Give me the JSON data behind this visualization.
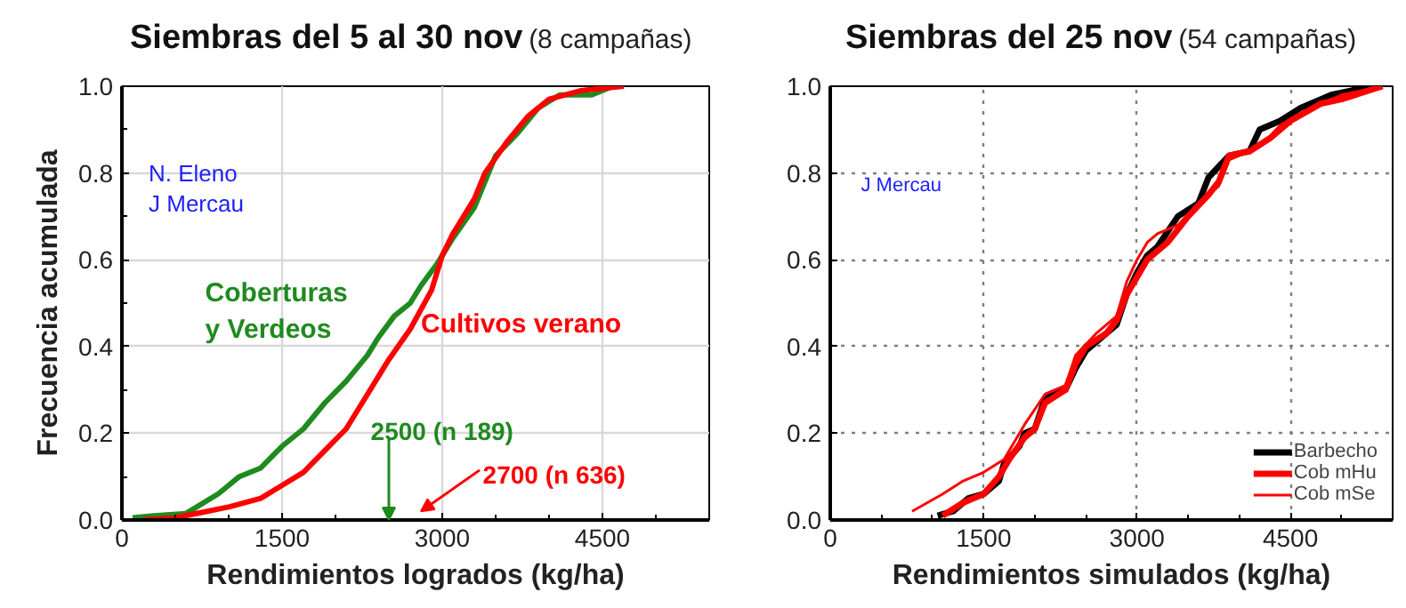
{
  "chart_data": [
    {
      "type": "line",
      "title": "Siembras del 5 al 30 nov",
      "subtitle": "(8 campañas)",
      "xlabel": "Rendimientos logrados (kg/ha)",
      "ylabel": "Frecuencia acumulada",
      "xlim": [
        0,
        5500
      ],
      "ylim": [
        0,
        1
      ],
      "xticks": [
        0,
        {
          "value": 500,
          "label": null
        },
        {
          "value": 1000,
          "label": null
        },
        1500,
        {
          "value": 2000,
          "label": null
        },
        {
          "value": 2500,
          "label": null
        },
        3000,
        {
          "value": 3500,
          "label": null
        },
        {
          "value": 4000,
          "label": null
        },
        4500,
        {
          "value": 5000,
          "label": null
        }
      ],
      "yticks": [
        {
          "value": 0,
          "label": "0.0"
        },
        {
          "value": 0.1,
          "label": null
        },
        {
          "value": 0.2,
          "label": "0.2"
        },
        {
          "value": 0.3,
          "label": null
        },
        {
          "value": 0.4,
          "label": "0.4"
        },
        {
          "value": 0.5,
          "label": null
        },
        {
          "value": 0.6,
          "label": "0.6"
        },
        {
          "value": 0.7,
          "label": null
        },
        {
          "value": 0.8,
          "label": "0.8"
        },
        {
          "value": 0.9,
          "label": null
        },
        {
          "value": 1,
          "label": "1.0"
        }
      ],
      "grid": true,
      "legend": false,
      "marker": "none",
      "line_style": "solid",
      "series": [
        {
          "color": "#1f8a1f",
          "x": [
            100,
            300,
            600,
            700,
            900,
            1100,
            1300,
            1500,
            1700,
            1900,
            2100,
            2300,
            2400,
            2550,
            2700,
            2800,
            2950,
            3100,
            3300,
            3400,
            3500,
            3700,
            3900,
            4100,
            4400,
            4600
          ],
          "values": [
            0.005,
            0.01,
            0.015,
            0.03,
            0.06,
            0.1,
            0.12,
            0.17,
            0.21,
            0.27,
            0.32,
            0.38,
            0.42,
            0.47,
            0.5,
            0.54,
            0.59,
            0.65,
            0.72,
            0.78,
            0.84,
            0.89,
            0.95,
            0.98,
            0.98,
            1.0
          ]
        },
        {
          "color": "#ff0000",
          "x": [
            200,
            500,
            800,
            1000,
            1300,
            1500,
            1700,
            1900,
            2100,
            2300,
            2500,
            2700,
            2900,
            3000,
            3100,
            3300,
            3400,
            3600,
            3800,
            4000,
            4300,
            4700
          ],
          "values": [
            0.0,
            0.005,
            0.02,
            0.03,
            0.05,
            0.08,
            0.11,
            0.16,
            0.21,
            0.29,
            0.37,
            0.44,
            0.53,
            0.61,
            0.66,
            0.74,
            0.8,
            0.87,
            0.93,
            0.97,
            0.99,
            1.0
          ]
        }
      ],
      "annotations": [
        "N. Eleno",
        "J Mercau",
        "Coberturas\ny Verdeos",
        "Cultivos verano",
        "2500 (n 189)",
        "2700 (n 636)"
      ]
    },
    {
      "type": "line",
      "title": "Siembras del 25 nov",
      "subtitle": "(54 campañas)",
      "xlabel": "Rendimientos simulados (kg/ha)",
      "xlim": [
        0,
        5500
      ],
      "ylim": [
        0,
        1
      ],
      "xticks": [
        0,
        {
          "value": 500,
          "label": null
        },
        {
          "value": 1000,
          "label": null
        },
        1500,
        {
          "value": 2000,
          "label": null
        },
        {
          "value": 2500,
          "label": null
        },
        3000,
        {
          "value": 3500,
          "label": null
        },
        {
          "value": 4000,
          "label": null
        },
        4500,
        {
          "value": 5000,
          "label": null
        }
      ],
      "yticks": [
        {
          "value": 0,
          "label": "0.0"
        },
        {
          "value": 0.2,
          "label": "0.2"
        },
        {
          "value": 0.4,
          "label": "0.4"
        },
        {
          "value": 0.6,
          "label": "0.6"
        },
        {
          "value": 0.8,
          "label": "0.8"
        },
        {
          "value": 1,
          "label": "1.0"
        }
      ],
      "grid": true,
      "legend": "bottom right",
      "marker": "none",
      "line_style": "solid",
      "series": [
        {
          "name": "Barbecho",
          "color": "#000000",
          "x": [
            1050,
            1200,
            1350,
            1500,
            1650,
            1700,
            1850,
            1900,
            2000,
            2100,
            2300,
            2400,
            2500,
            2600,
            2800,
            2900,
            3000,
            3100,
            3200,
            3400,
            3600,
            3700,
            3900,
            4100,
            4200,
            4400,
            4600,
            4900,
            5300
          ],
          "values": [
            0.01,
            0.02,
            0.05,
            0.06,
            0.09,
            0.13,
            0.17,
            0.2,
            0.21,
            0.28,
            0.3,
            0.35,
            0.39,
            0.41,
            0.45,
            0.52,
            0.57,
            0.61,
            0.63,
            0.7,
            0.73,
            0.79,
            0.84,
            0.85,
            0.9,
            0.92,
            0.95,
            0.98,
            1.0
          ]
        },
        {
          "name": "Cob mHu",
          "color": "#ff0000",
          "x": [
            1100,
            1300,
            1500,
            1650,
            1750,
            1900,
            2000,
            2100,
            2300,
            2400,
            2500,
            2700,
            2800,
            2900,
            3000,
            3100,
            3300,
            3500,
            3700,
            3800,
            3900,
            4100,
            4300,
            4500,
            4800,
            5000,
            5400
          ],
          "values": [
            0.01,
            0.04,
            0.06,
            0.1,
            0.14,
            0.19,
            0.21,
            0.27,
            0.3,
            0.36,
            0.4,
            0.43,
            0.46,
            0.52,
            0.56,
            0.6,
            0.64,
            0.7,
            0.75,
            0.78,
            0.84,
            0.85,
            0.88,
            0.92,
            0.96,
            0.97,
            1.0
          ]
        },
        {
          "name": "Cob mSe",
          "color": "#ff0000",
          "x": [
            800,
            1100,
            1300,
            1500,
            1700,
            1800,
            1900,
            2100,
            2300,
            2400,
            2600,
            2800,
            2900,
            3000,
            3100,
            3200,
            3400,
            3600,
            3800,
            3900,
            4200,
            4400,
            4700,
            5000,
            5400
          ],
          "values": [
            0.02,
            0.06,
            0.09,
            0.11,
            0.14,
            0.18,
            0.22,
            0.29,
            0.31,
            0.38,
            0.43,
            0.47,
            0.55,
            0.6,
            0.64,
            0.66,
            0.68,
            0.73,
            0.77,
            0.83,
            0.86,
            0.91,
            0.95,
            0.98,
            1.0
          ]
        }
      ],
      "annotations": [
        "J Mercau"
      ]
    }
  ]
}
